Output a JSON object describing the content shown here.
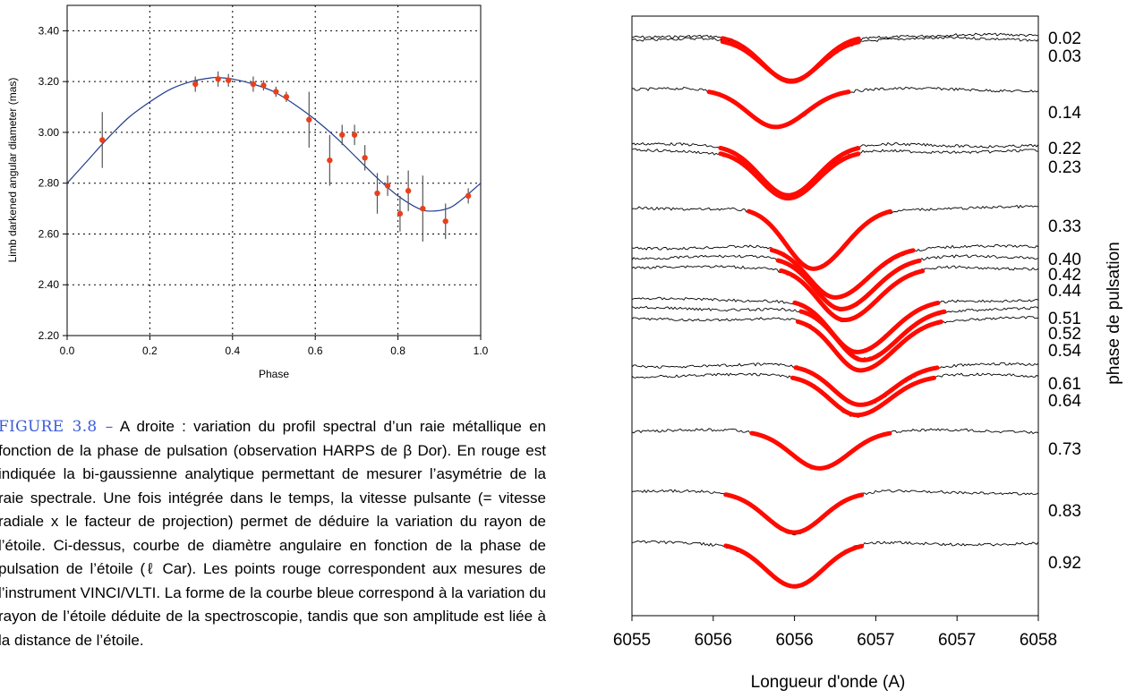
{
  "caption": {
    "figure_label": "FIGURE 3.8 –",
    "text": "A droite : variation du profil spectral d’un raie métallique en fonction de la phase de pulsation (observation HARPS de β Dor). En rouge est indiquée la bi-gaussienne analytique permettant de mesurer l’asymétrie de la raie spectrale. Une fois intégrée dans le temps, la vitesse pulsante (= vitesse radiale x le facteur de projection) permet de déduire la variation du rayon de l’étoile. Ci-dessus, courbe de diamètre angulaire en fonction de la phase de pulsation de l’étoile (ℓ Car). Les points rouge correspondent aux mesures de l’instrument VINCI/VLTI. La forme de la courbe bleue correspond à la variation du rayon de l’étoile déduite de la spectroscopie, tandis que son amplitude est liée à la distance de l’étoile."
  },
  "chart_data": [
    {
      "type": "scatter",
      "xlabel": "Phase",
      "ylabel": "Limb darkened angular diameter (mas)",
      "xlim": [
        0.0,
        1.0
      ],
      "ylim": [
        2.2,
        3.5
      ],
      "x_ticks": [
        "0.0",
        "0.2",
        "0.4",
        "0.6",
        "0.8",
        "1.0"
      ],
      "x_tick_values": [
        0.0,
        0.2,
        0.4,
        0.6,
        0.8,
        1.0
      ],
      "y_ticks": [
        "2.20",
        "2.40",
        "2.60",
        "2.80",
        "3.00",
        "3.20",
        "3.40"
      ],
      "y_tick_values": [
        2.2,
        2.4,
        2.6,
        2.8,
        3.0,
        3.2,
        3.4
      ],
      "grid": true,
      "colors": {
        "points": "#e8401c",
        "errorbars": "#555555",
        "curve": "#1f3c8f"
      },
      "points": [
        {
          "x": 0.085,
          "y": 2.97,
          "err": 0.11
        },
        {
          "x": 0.31,
          "y": 3.19,
          "err": 0.03
        },
        {
          "x": 0.365,
          "y": 3.21,
          "err": 0.03
        },
        {
          "x": 0.39,
          "y": 3.205,
          "err": 0.025
        },
        {
          "x": 0.45,
          "y": 3.19,
          "err": 0.03
        },
        {
          "x": 0.475,
          "y": 3.185,
          "err": 0.02
        },
        {
          "x": 0.505,
          "y": 3.16,
          "err": 0.02
        },
        {
          "x": 0.53,
          "y": 3.14,
          "err": 0.02
        },
        {
          "x": 0.585,
          "y": 3.05,
          "err": 0.11
        },
        {
          "x": 0.635,
          "y": 2.89,
          "err": 0.1
        },
        {
          "x": 0.665,
          "y": 2.99,
          "err": 0.04
        },
        {
          "x": 0.695,
          "y": 2.99,
          "err": 0.04
        },
        {
          "x": 0.72,
          "y": 2.9,
          "err": 0.05
        },
        {
          "x": 0.75,
          "y": 2.76,
          "err": 0.08
        },
        {
          "x": 0.775,
          "y": 2.79,
          "err": 0.04
        },
        {
          "x": 0.805,
          "y": 2.68,
          "err": 0.07
        },
        {
          "x": 0.825,
          "y": 2.77,
          "err": 0.08
        },
        {
          "x": 0.86,
          "y": 2.7,
          "err": 0.13
        },
        {
          "x": 0.915,
          "y": 2.65,
          "err": 0.07
        },
        {
          "x": 0.97,
          "y": 2.75,
          "err": 0.03
        }
      ],
      "curve": {
        "x": [
          0.0,
          0.05,
          0.1,
          0.15,
          0.2,
          0.25,
          0.3,
          0.35,
          0.37,
          0.4,
          0.45,
          0.5,
          0.55,
          0.6,
          0.65,
          0.7,
          0.75,
          0.8,
          0.85,
          0.88,
          0.92,
          0.95,
          1.0
        ],
        "y": [
          2.8,
          2.89,
          2.98,
          3.06,
          3.12,
          3.17,
          3.2,
          3.215,
          3.215,
          3.21,
          3.19,
          3.16,
          3.11,
          3.05,
          2.98,
          2.9,
          2.82,
          2.75,
          2.7,
          2.69,
          2.7,
          2.73,
          2.8
        ]
      }
    },
    {
      "type": "line",
      "xlabel": "Longueur d'onde (A)",
      "ylabel": "phase de pulsation",
      "x_ticks": [
        "6055",
        "6056",
        "6056",
        "6057",
        "6057",
        "6058"
      ],
      "colors": {
        "profiles": "#000000",
        "fit": "#ff0a00"
      },
      "phases": [
        {
          "label": "0.02",
          "level": 0.0,
          "center": 0.0,
          "depth": 0.64,
          "asym": 0.0
        },
        {
          "label": "0.03",
          "level": 0.12,
          "center": 0.0,
          "depth": 0.58,
          "asym": 0.0
        },
        {
          "label": "0.14",
          "level": 1.85,
          "center": -0.25,
          "depth": 0.52,
          "asym": 0.1
        },
        {
          "label": "0.22",
          "level": 3.75,
          "center": -0.05,
          "depth": 0.7,
          "asym": 0.05
        },
        {
          "label": "0.23",
          "level": 3.95,
          "center": -0.05,
          "depth": 0.66,
          "asym": 0.05
        },
        {
          "label": "0.33",
          "level": 5.9,
          "center": 0.35,
          "depth": 0.85,
          "asym": 0.2
        },
        {
          "label": "0.40",
          "level": 7.25,
          "center": 0.7,
          "depth": 0.7,
          "asym": 0.25
        },
        {
          "label": "0.42",
          "level": 7.6,
          "center": 0.8,
          "depth": 0.72,
          "asym": 0.25
        },
        {
          "label": "0.44",
          "level": 7.95,
          "center": 0.85,
          "depth": 0.73,
          "asym": 0.25
        },
        {
          "label": "0.51",
          "level": 9.05,
          "center": 1.05,
          "depth": 0.73,
          "asym": 0.3
        },
        {
          "label": "0.52",
          "level": 9.35,
          "center": 1.15,
          "depth": 0.72,
          "asym": 0.3
        },
        {
          "label": "0.54",
          "level": 9.7,
          "center": 1.1,
          "depth": 0.72,
          "asym": 0.3
        },
        {
          "label": "0.61",
          "level": 11.3,
          "center": 1.1,
          "depth": 0.55,
          "asym": 0.2
        },
        {
          "label": "0.64",
          "level": 11.65,
          "center": 1.05,
          "depth": 0.55,
          "asym": 0.2
        },
        {
          "label": "0.73",
          "level": 13.55,
          "center": 0.45,
          "depth": 0.52,
          "asym": 0.05
        },
        {
          "label": "0.83",
          "level": 15.65,
          "center": 0.05,
          "depth": 0.56,
          "asym": 0.0
        },
        {
          "label": "0.92",
          "level": 17.4,
          "center": 0.05,
          "depth": 0.6,
          "asym": 0.0
        }
      ]
    }
  ]
}
